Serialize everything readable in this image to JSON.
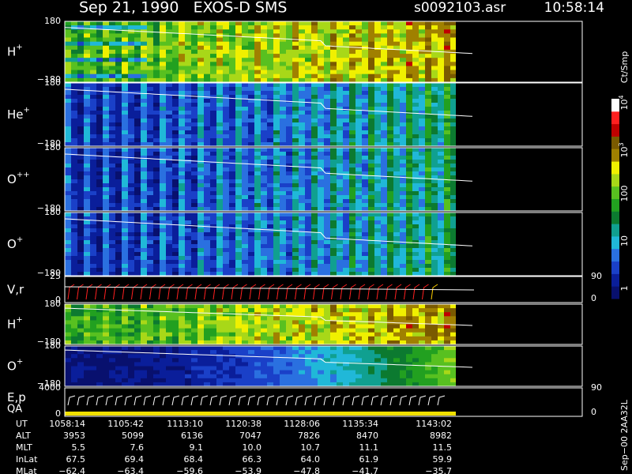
{
  "header": {
    "title": "Sep 21, 1990   EXOS-D SMS",
    "file": "s0092103.asr",
    "time": "10:58:14"
  },
  "panels": [
    {
      "label": {
        "base": "H",
        "sup": "+"
      },
      "ticks": [
        "180",
        "−180"
      ]
    },
    {
      "label": {
        "base": "He",
        "sup": "+"
      },
      "ticks": [
        "180",
        "−180"
      ]
    },
    {
      "label": {
        "base": "O",
        "sup": "++"
      },
      "ticks": [
        "180",
        "−180"
      ]
    },
    {
      "label": {
        "base": "O",
        "sup": "+"
      },
      "ticks": [
        "180",
        "−180"
      ]
    },
    {
      "label": {
        "base": "V,r"
      },
      "ticks": [
        "25",
        "0"
      ],
      "right_ticks": [
        "90",
        "0"
      ]
    },
    {
      "label": {
        "base": "H",
        "sup": "+"
      },
      "ticks": [
        "180",
        "−180"
      ]
    },
    {
      "label": {
        "base": "O",
        "sup": "+"
      },
      "ticks": [
        "180",
        "−180"
      ]
    },
    {
      "label": {
        "base": "E,p",
        "second": "QA"
      },
      "ticks": [
        "4000",
        "0"
      ],
      "right_ticks": [
        "90",
        "0"
      ]
    }
  ],
  "colorbar": {
    "unit": "Ct/Smp",
    "labels": [
      {
        "base": "10",
        "sup": "4"
      },
      {
        "base": "10",
        "sup": "3"
      },
      {
        "base": "100"
      },
      {
        "base": "10"
      },
      {
        "base": "1"
      }
    ]
  },
  "ephemeris": {
    "rows": [
      {
        "name": "UT",
        "values": [
          "1058:14",
          "1105:42",
          "1113:10",
          "1120:38",
          "1128:06",
          "1135:34",
          "1143:02"
        ]
      },
      {
        "name": "ALT",
        "values": [
          "3953",
          "5099",
          "6136",
          "7047",
          "7826",
          "8470",
          "8982"
        ]
      },
      {
        "name": "MLT",
        "values": [
          "5.5",
          "7.6",
          "9.1",
          "10.0",
          "10.7",
          "11.1",
          "11.5"
        ]
      },
      {
        "name": "InLat",
        "values": [
          "67.5",
          "69.4",
          "68.4",
          "66.3",
          "64.0",
          "61.9",
          "59.9"
        ]
      },
      {
        "name": "MLat",
        "values": [
          "−62.4",
          "−63.4",
          "−59.6",
          "−53.9",
          "−47.8",
          "−41.7",
          "−35.7"
        ]
      }
    ]
  },
  "footer": "Sep−00 2AA32L"
}
